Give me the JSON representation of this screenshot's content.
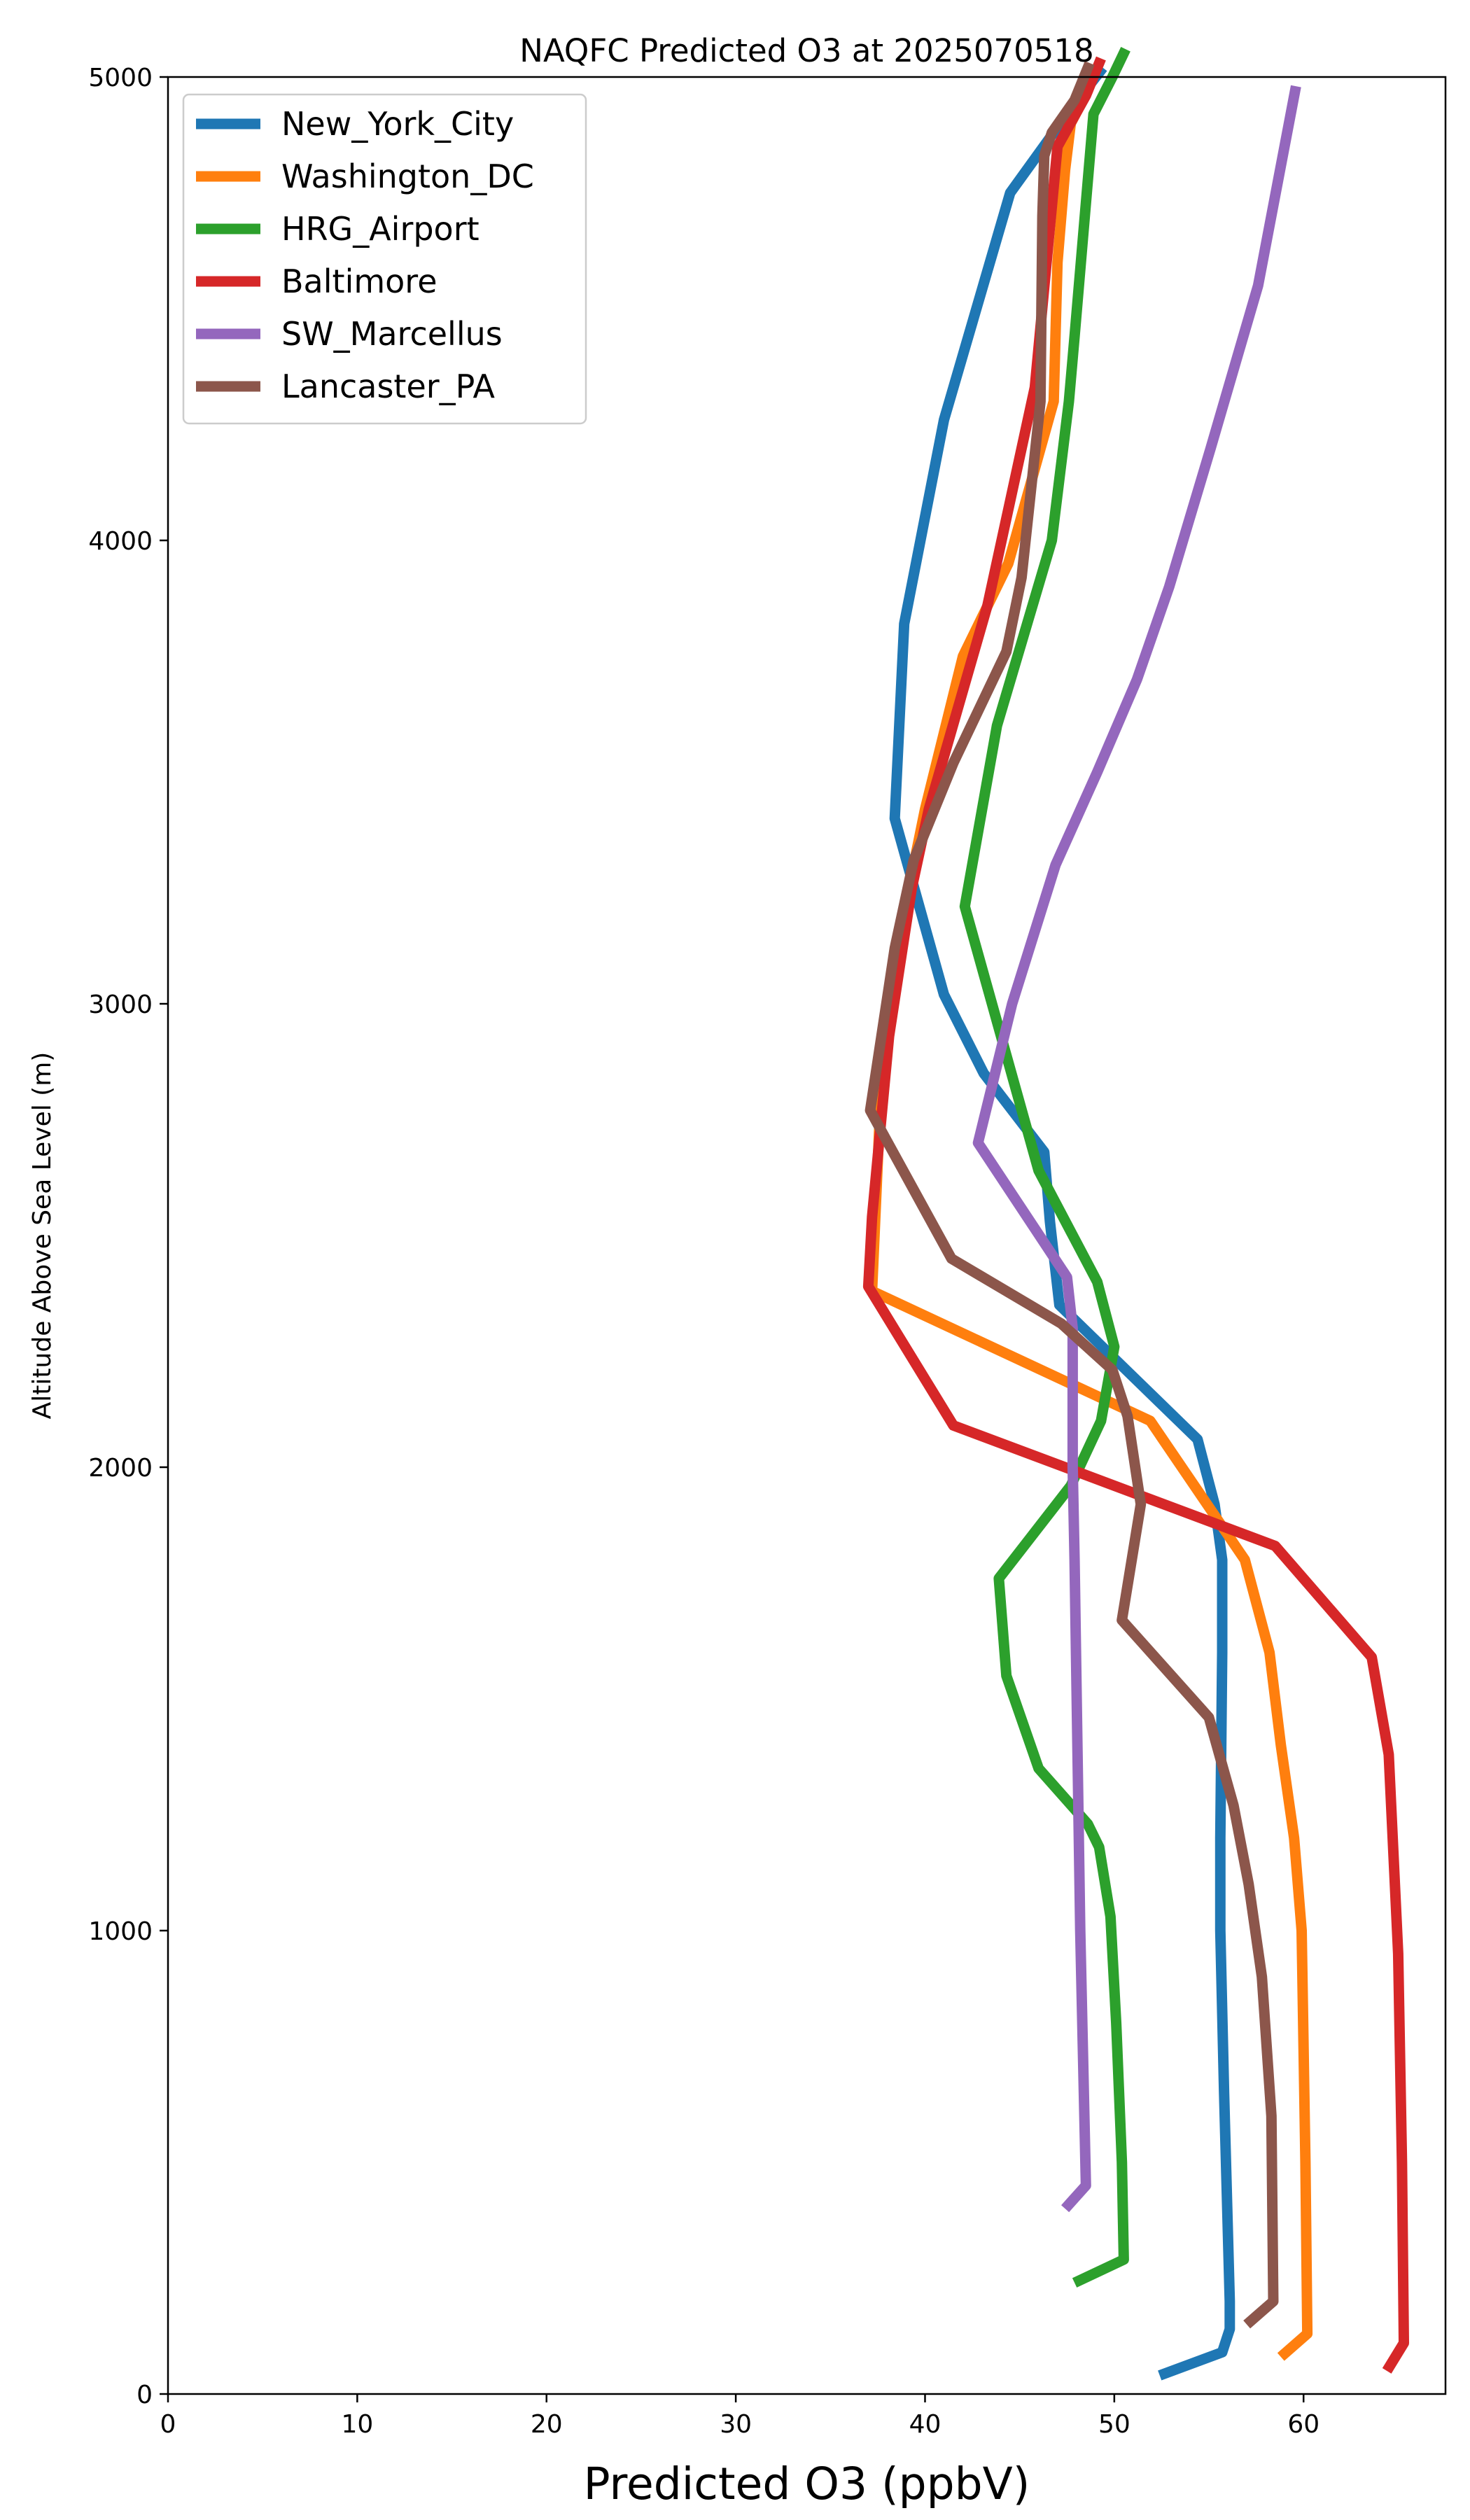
{
  "chart_data": {
    "type": "line",
    "title": "NAQFC Predicted O3 at 2025070518",
    "xlabel": "Predicted O3 (ppbV)",
    "ylabel": "Altitude Above Sea Level (m)",
    "xlim": [
      0,
      67.5
    ],
    "ylim": [
      0,
      5000
    ],
    "xticks": [
      "0",
      "10",
      "20",
      "30",
      "40",
      "50",
      "60"
    ],
    "yticks": [
      "0",
      "1000",
      "2000",
      "3000",
      "4000",
      "5000"
    ],
    "grid": false,
    "legend_position": "upper-left",
    "series": [
      {
        "name": "New_York_City",
        "color": "#1f77b4",
        "x": [
          52.4,
          55.7,
          56.1,
          56.1,
          55.8,
          55.6,
          55.6,
          55.7,
          55.7,
          55.3,
          54.4,
          47.1,
          46.6,
          46.3,
          43.1,
          41.0,
          38.4,
          38.9,
          41.0,
          44.5,
          47.5,
          49.4
        ],
        "y": [
          40,
          90,
          140,
          200,
          650,
          1000,
          1200,
          1600,
          1800,
          1920,
          2060,
          2350,
          2530,
          2680,
          2850,
          3020,
          3400,
          3820,
          4260,
          4750,
          4920,
          5020
        ]
      },
      {
        "name": "Washington_DC",
        "color": "#ff7f0e",
        "x": [
          58.8,
          60.2,
          60.1,
          59.9,
          59.5,
          58.8,
          58.2,
          56.9,
          51.9,
          37.2,
          37.6,
          38.2,
          40.0,
          42.0,
          44.4,
          46.8,
          47.0,
          47.4,
          47.7,
          48.6,
          49.0
        ],
        "y": [
          80,
          130,
          500,
          1000,
          1200,
          1400,
          1600,
          1800,
          2100,
          2380,
          2750,
          3060,
          3420,
          3750,
          3950,
          4300,
          4600,
          4800,
          4900,
          4970,
          5020
        ]
      },
      {
        "name": "HRG_Airport",
        "color": "#2ca02c",
        "x": [
          47.9,
          50.5,
          50.4,
          50.1,
          49.8,
          49.2,
          48.6,
          46.0,
          44.3,
          43.9,
          47.7,
          49.3,
          50.0,
          49.1,
          46.0,
          42.1,
          43.8,
          46.7,
          47.6,
          47.9,
          48.9,
          49.9,
          50.6
        ],
        "y": [
          240,
          290,
          500,
          800,
          1030,
          1180,
          1230,
          1350,
          1550,
          1760,
          1960,
          2100,
          2260,
          2400,
          2640,
          3210,
          3600,
          4000,
          4300,
          4440,
          4920,
          5000,
          5060
        ]
      },
      {
        "name": "Baltimore",
        "color": "#d62728",
        "x": [
          64.4,
          65.3,
          65.2,
          65.0,
          64.5,
          63.6,
          58.5,
          41.5,
          37.0,
          37.2,
          38.1,
          39.3,
          40.2,
          43.3,
          45.8,
          47.0,
          48.5,
          49.3
        ],
        "y": [
          50,
          110,
          500,
          950,
          1380,
          1590,
          1830,
          2090,
          2390,
          2540,
          2930,
          3250,
          3420,
          3860,
          4330,
          4850,
          4960,
          5040
        ]
      },
      {
        "name": "SW_Marcellus",
        "color": "#9467bd",
        "x": [
          47.4,
          48.5,
          48.2,
          47.9,
          47.8,
          47.8,
          47.8,
          47.5,
          42.8,
          44.6,
          46.9,
          49.1,
          51.2,
          52.9,
          55.1,
          57.6,
          59.6
        ],
        "y": [
          400,
          450,
          1000,
          1800,
          2000,
          2200,
          2300,
          2410,
          2700,
          3000,
          3300,
          3500,
          3700,
          3900,
          4200,
          4550,
          4980
        ]
      },
      {
        "name": "Lancaster_PA",
        "color": "#8c564b",
        "x": [
          57.0,
          58.4,
          58.3,
          57.8,
          57.1,
          56.3,
          55.0,
          50.4,
          51.4,
          50.7,
          49.9,
          47.2,
          41.4,
          37.1,
          38.4,
          39.4,
          41.5,
          44.3,
          45.1,
          46.1,
          46.2,
          46.3,
          46.7,
          47.9,
          48.7
        ],
        "y": [
          150,
          200,
          600,
          900,
          1100,
          1270,
          1460,
          1670,
          1920,
          2110,
          2210,
          2310,
          2450,
          2770,
          3120,
          3310,
          3520,
          3760,
          3920,
          4300,
          4700,
          4830,
          4880,
          4950,
          5030
        ]
      }
    ]
  }
}
